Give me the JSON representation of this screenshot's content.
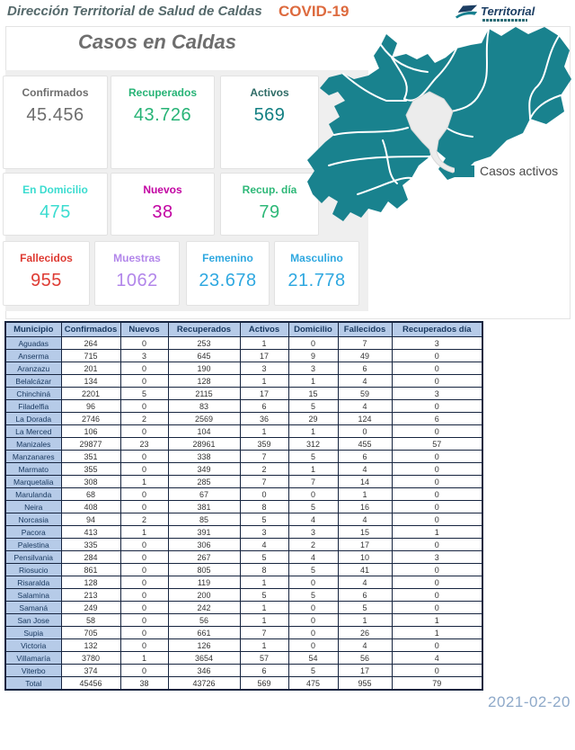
{
  "header": {
    "title": "Dirección Territorial de Salud de Caldas",
    "covid_label": "COVID-19",
    "covid_color": "#dd6a3e",
    "logo_text": "Territorial"
  },
  "page_title": "Casos en Caldas",
  "stat_cards": [
    {
      "label": "Confirmados",
      "value": "45.456",
      "color": "#6d6d6d"
    },
    {
      "label": "Recuperados",
      "value": "43.726",
      "color": "#27b376"
    },
    {
      "label": "Activos",
      "value": "569",
      "color": "#2e6b66",
      "value_color": "#117f82"
    },
    {
      "label": "En Domicilio",
      "value": "475",
      "color": "#3bdcd0"
    },
    {
      "label": "Nuevos",
      "value": "38",
      "color": "#c203a2"
    },
    {
      "label": "Recup. día",
      "value": "79",
      "color": "#2eb878"
    },
    {
      "label": "Fallecidos",
      "value": "955",
      "color": "#de3b33"
    },
    {
      "label": "Muestras",
      "value": "1062",
      "color": "#b286ea"
    },
    {
      "label": "Femenino",
      "value": "23.678",
      "color": "#2fa8e0"
    },
    {
      "label": "Masculino",
      "value": "21.778",
      "color": "#2fa8e0"
    }
  ],
  "map": {
    "legend_label": "Casos activos",
    "fill": "#19828e",
    "no_cases_fill": "#ececec",
    "border_color": "#ffffff"
  },
  "table": {
    "columns": [
      "Municipio",
      "Confirmados",
      "Nuevos",
      "Recuperados",
      "Activos",
      "Domicilio",
      "Fallecidos",
      "Recuperados día"
    ],
    "rows": [
      [
        "Aguadas",
        264,
        0,
        253,
        1,
        0,
        7,
        3
      ],
      [
        "Anserma",
        715,
        3,
        645,
        17,
        9,
        49,
        0
      ],
      [
        "Aranzazu",
        201,
        0,
        190,
        3,
        3,
        6,
        0
      ],
      [
        "Belalcázar",
        134,
        0,
        128,
        1,
        1,
        4,
        0
      ],
      [
        "Chinchiná",
        2201,
        5,
        2115,
        17,
        15,
        59,
        3
      ],
      [
        "Filadelfia",
        96,
        0,
        83,
        6,
        5,
        4,
        0
      ],
      [
        "La Dorada",
        2746,
        2,
        2569,
        36,
        29,
        124,
        6
      ],
      [
        "La Merced",
        106,
        0,
        104,
        1,
        1,
        0,
        0
      ],
      [
        "Manizales",
        29877,
        23,
        28961,
        359,
        312,
        455,
        57
      ],
      [
        "Manzanares",
        351,
        0,
        338,
        7,
        5,
        6,
        0
      ],
      [
        "Marmato",
        355,
        0,
        349,
        2,
        1,
        4,
        0
      ],
      [
        "Marquetalia",
        308,
        1,
        285,
        7,
        7,
        14,
        0
      ],
      [
        "Marulanda",
        68,
        0,
        67,
        0,
        0,
        1,
        0
      ],
      [
        "Neira",
        408,
        0,
        381,
        8,
        5,
        16,
        0
      ],
      [
        "Norcasia",
        94,
        2,
        85,
        5,
        4,
        4,
        0
      ],
      [
        "Pacora",
        413,
        1,
        391,
        3,
        3,
        15,
        1
      ],
      [
        "Palestina",
        335,
        0,
        306,
        4,
        2,
        17,
        0
      ],
      [
        "Pensilvania",
        284,
        0,
        267,
        5,
        4,
        10,
        3
      ],
      [
        "Riosucio",
        861,
        0,
        805,
        8,
        5,
        41,
        0
      ],
      [
        "Risaralda",
        128,
        0,
        119,
        1,
        0,
        4,
        0
      ],
      [
        "Salamina",
        213,
        0,
        200,
        5,
        5,
        6,
        0
      ],
      [
        "Samaná",
        249,
        0,
        242,
        1,
        0,
        5,
        0
      ],
      [
        "San Jose",
        58,
        0,
        56,
        1,
        0,
        1,
        1
      ],
      [
        "Supia",
        705,
        0,
        661,
        7,
        0,
        26,
        1
      ],
      [
        "Victoria",
        132,
        0,
        126,
        1,
        0,
        4,
        0
      ],
      [
        "Villamaría",
        3780,
        1,
        3654,
        57,
        54,
        56,
        4
      ],
      [
        "Viterbo",
        374,
        0,
        346,
        6,
        5,
        17,
        0
      ]
    ],
    "total": [
      "Total",
      45456,
      38,
      43726,
      569,
      475,
      955,
      79
    ]
  },
  "footer_date": "2021-02-20"
}
